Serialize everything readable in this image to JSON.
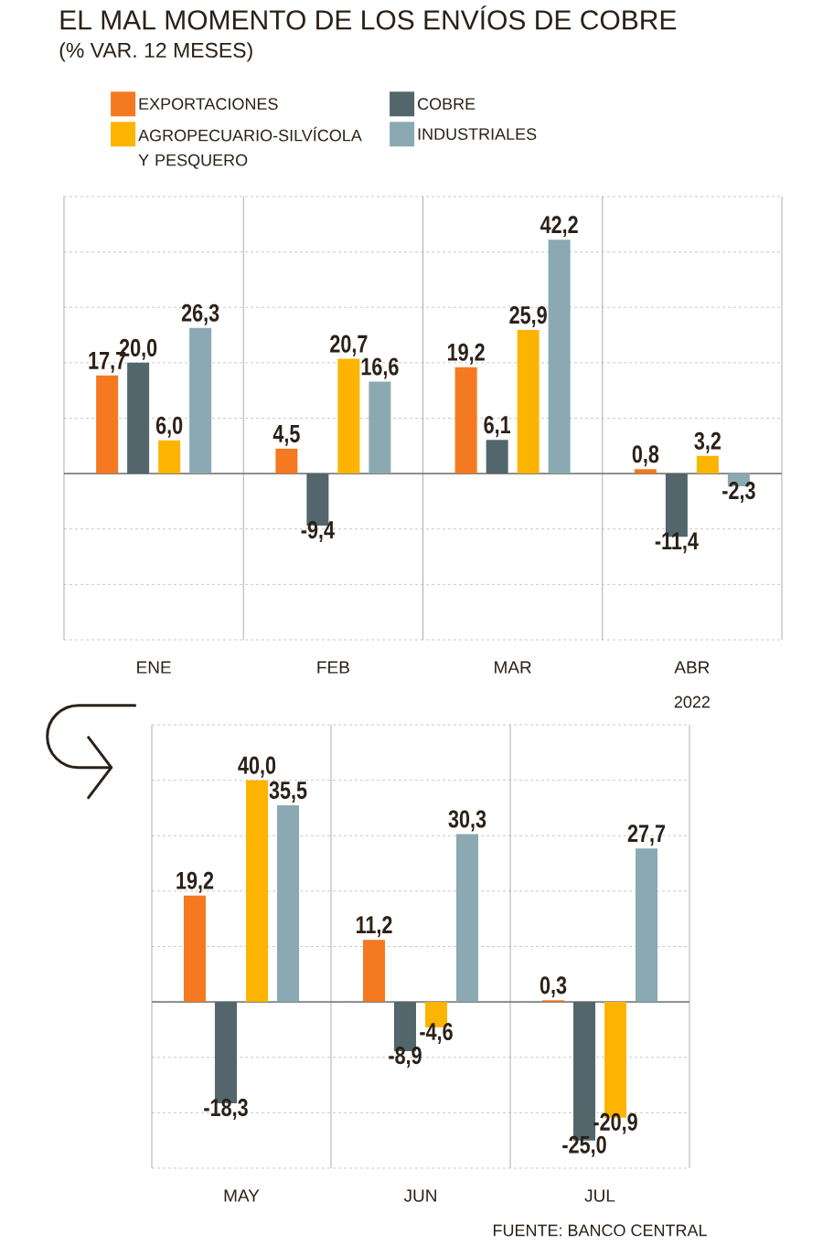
{
  "chart_data": [
    {
      "type": "bar",
      "title": "EL MAL MOMENTO DE LOS ENVÍOS DE COBRE",
      "subtitle": "(% VAR. 12 MESES)",
      "categories": [
        "ENE",
        "FEB",
        "MAR",
        "ABR"
      ],
      "series": [
        {
          "name": "EXPORTACIONES",
          "color": "#f47920",
          "values": [
            17.7,
            4.5,
            19.2,
            0.8
          ],
          "value_labels": [
            "17,7",
            "4,5",
            "19,2",
            "0,8"
          ]
        },
        {
          "name": "COBRE",
          "color": "#52666b",
          "values": [
            20.0,
            -9.4,
            6.1,
            -11.4
          ],
          "value_labels": [
            "20,0",
            "-9,4",
            "6,1",
            "-11,4"
          ]
        },
        {
          "name": "AGROPECUARIO-SILVÍCOLA Y PESQUERO",
          "color": "#fdb400",
          "values": [
            6.0,
            20.7,
            25.9,
            3.2
          ],
          "value_labels": [
            "6,0",
            "20,7",
            "25,9",
            "3,2"
          ]
        },
        {
          "name": "INDUSTRIALES",
          "color": "#8aa9b2",
          "values": [
            26.3,
            16.6,
            42.2,
            -2.3
          ],
          "value_labels": [
            "26,3",
            "16,6",
            "42,2",
            "-2,3"
          ]
        }
      ],
      "ylim": [
        -30,
        50
      ],
      "yticks": [
        -30,
        -20,
        -10,
        0,
        10,
        20,
        30,
        40,
        50
      ],
      "grid": "y",
      "tick_labels": "x",
      "legend": "top",
      "annotations": [
        "2022"
      ]
    },
    {
      "type": "bar",
      "categories": [
        "MAY",
        "JUN",
        "JUL"
      ],
      "series": [
        {
          "color": "#f47920",
          "values": [
            19.2,
            11.2,
            0.3
          ],
          "value_labels": [
            "19,2",
            "11,2",
            "0,3"
          ]
        },
        {
          "color": "#52666b",
          "values": [
            -18.3,
            -8.9,
            -25.0
          ],
          "value_labels": [
            "-18,3",
            "-8,9",
            "-25,0"
          ]
        },
        {
          "color": "#fdb400",
          "values": [
            40.0,
            -4.6,
            -20.9
          ],
          "value_labels": [
            "40,0",
            "-4,6",
            "-20,9"
          ]
        },
        {
          "color": "#8aa9b2",
          "values": [
            35.5,
            30.3,
            27.7
          ],
          "value_labels": [
            "35,5",
            "30,3",
            "27,7"
          ]
        }
      ],
      "ylim": [
        -30,
        50
      ],
      "yticks": [
        -30,
        -20,
        -10,
        0,
        10,
        20,
        30,
        40,
        50
      ],
      "grid": "y",
      "tick_labels": "x",
      "annotations": [
        "FUENTE: BANCO CENTRAL"
      ]
    }
  ]
}
